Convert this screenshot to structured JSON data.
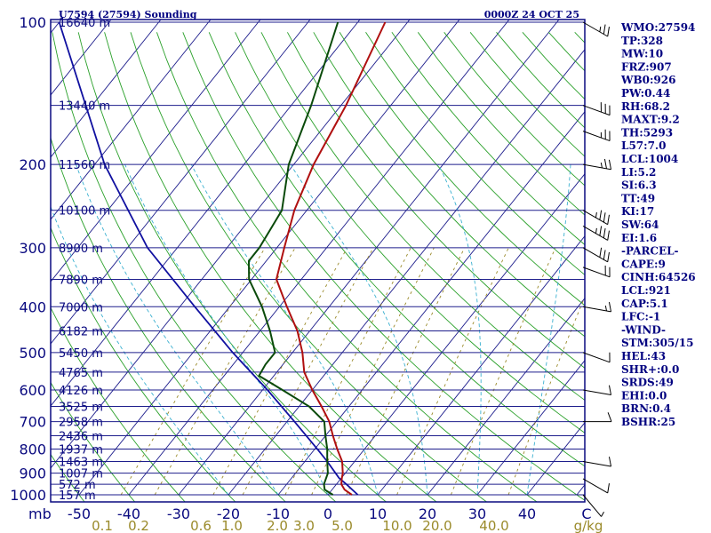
{
  "chart_data": {
    "type": "skew-t",
    "title_left": "U7594 (27594) Sounding",
    "title_right": "0000Z 24 OCT 25",
    "pressure_axis_unit": "mb",
    "pressure_levels": [
      100,
      200,
      300,
      400,
      500,
      600,
      700,
      800,
      900,
      1000
    ],
    "height_levels": [
      {
        "p": 100,
        "label": "16640 m"
      },
      {
        "p": 150,
        "label": "13440 m"
      },
      {
        "p": 200,
        "label": "11560 m"
      },
      {
        "p": 250,
        "label": "10100 m"
      },
      {
        "p": 300,
        "label": "8900 m"
      },
      {
        "p": 350,
        "label": "7890 m"
      },
      {
        "p": 400,
        "label": "7000 m"
      },
      {
        "p": 450,
        "label": "6182 m"
      },
      {
        "p": 500,
        "label": "5450 m"
      },
      {
        "p": 550,
        "label": "4765 m"
      },
      {
        "p": 600,
        "label": "4126 m"
      },
      {
        "p": 650,
        "label": "3525 m"
      },
      {
        "p": 700,
        "label": "2958 m"
      },
      {
        "p": 750,
        "label": "2436 m"
      },
      {
        "p": 800,
        "label": "1937 m"
      },
      {
        "p": 850,
        "label": "1463 m"
      },
      {
        "p": 900,
        "label": "1007 m"
      },
      {
        "p": 950,
        "label": "572 m"
      },
      {
        "p": 1000,
        "label": "157 m"
      }
    ],
    "temperature_ticks": [
      -50,
      -40,
      -30,
      -20,
      -10,
      0,
      10,
      20,
      30,
      40
    ],
    "temperature_unit": "C",
    "mixing_ratio_ticks": [
      {
        "label": "0.1",
        "value": 0.1
      },
      {
        "label": "0.2",
        "value": 0.2
      },
      {
        "label": "0.6",
        "value": 0.6
      },
      {
        "label": "1.0",
        "value": 1.0
      },
      {
        "label": "2.0",
        "value": 2.0
      },
      {
        "label": "3.0",
        "value": 3.0
      },
      {
        "label": "5.0",
        "value": 5.0
      },
      {
        "label": "10.0",
        "value": 10.0
      },
      {
        "label": "20.0",
        "value": 20.0
      },
      {
        "label": "40.0",
        "value": 40.0
      }
    ],
    "mixing_ratio_unit": "g/kg",
    "temperature_profile": [
      {
        "p": 1000,
        "t": 4.8
      },
      {
        "p": 975,
        "t": 2.5
      },
      {
        "p": 950,
        "t": 1.0
      },
      {
        "p": 925,
        "t": 0.2
      },
      {
        "p": 900,
        "t": -0.5
      },
      {
        "p": 850,
        "t": -2.5
      },
      {
        "p": 800,
        "t": -5.5
      },
      {
        "p": 750,
        "t": -8.5
      },
      {
        "p": 700,
        "t": -11.5
      },
      {
        "p": 650,
        "t": -15.5
      },
      {
        "p": 600,
        "t": -20.0
      },
      {
        "p": 550,
        "t": -24.5
      },
      {
        "p": 500,
        "t": -28.0
      },
      {
        "p": 450,
        "t": -32.5
      },
      {
        "p": 400,
        "t": -38.5
      },
      {
        "p": 350,
        "t": -45.0
      },
      {
        "p": 300,
        "t": -48.5
      },
      {
        "p": 250,
        "t": -52.5
      },
      {
        "p": 200,
        "t": -56.0
      },
      {
        "p": 150,
        "t": -59.0
      },
      {
        "p": 100,
        "t": -64.5
      }
    ],
    "dewpoint_profile": [
      {
        "p": 1000,
        "t": 1.0
      },
      {
        "p": 975,
        "t": -1.5
      },
      {
        "p": 950,
        "t": -2.5
      },
      {
        "p": 900,
        "t": -3.5
      },
      {
        "p": 850,
        "t": -5.5
      },
      {
        "p": 800,
        "t": -7.5
      },
      {
        "p": 750,
        "t": -10.0
      },
      {
        "p": 700,
        "t": -12.5
      },
      {
        "p": 650,
        "t": -18.0
      },
      {
        "p": 600,
        "t": -26.0
      },
      {
        "p": 560,
        "t": -33.0
      },
      {
        "p": 530,
        "t": -33.5
      },
      {
        "p": 500,
        "t": -33.5
      },
      {
        "p": 450,
        "t": -38.0
      },
      {
        "p": 400,
        "t": -43.5
      },
      {
        "p": 350,
        "t": -50.5
      },
      {
        "p": 320,
        "t": -53.5
      },
      {
        "p": 300,
        "t": -53.5
      },
      {
        "p": 250,
        "t": -55.0
      },
      {
        "p": 200,
        "t": -61.0
      },
      {
        "p": 150,
        "t": -66.0
      },
      {
        "p": 100,
        "t": -74.0
      }
    ],
    "parcel_profile": [
      {
        "p": 1000,
        "t": 6.0
      },
      {
        "p": 950,
        "t": 2.0
      },
      {
        "p": 921,
        "t": -0.5
      },
      {
        "p": 850,
        "t": -5.5
      },
      {
        "p": 800,
        "t": -9.5
      },
      {
        "p": 700,
        "t": -18.5
      },
      {
        "p": 600,
        "t": -29.0
      },
      {
        "p": 500,
        "t": -42.0
      },
      {
        "p": 400,
        "t": -57.0
      },
      {
        "p": 300,
        "t": -76.0
      },
      {
        "p": 200,
        "t": -98.0
      },
      {
        "p": 100,
        "t": -130.0
      }
    ],
    "wind_barbs": [
      {
        "p": 100,
        "dir": 300,
        "spd": 25
      },
      {
        "p": 150,
        "dir": 290,
        "spd": 30
      },
      {
        "p": 170,
        "dir": 290,
        "spd": 25
      },
      {
        "p": 200,
        "dir": 280,
        "spd": 25
      },
      {
        "p": 250,
        "dir": 300,
        "spd": 35
      },
      {
        "p": 270,
        "dir": 300,
        "spd": 35
      },
      {
        "p": 300,
        "dir": 300,
        "spd": 30
      },
      {
        "p": 330,
        "dir": 290,
        "spd": 20
      },
      {
        "p": 400,
        "dir": 280,
        "spd": 15
      },
      {
        "p": 500,
        "dir": 290,
        "spd": 10
      },
      {
        "p": 600,
        "dir": 280,
        "spd": 10
      },
      {
        "p": 700,
        "dir": 270,
        "spd": 10
      },
      {
        "p": 850,
        "dir": 280,
        "spd": 10
      },
      {
        "p": 925,
        "dir": 300,
        "spd": 10
      },
      {
        "p": 1000,
        "dir": 320,
        "spd": 5
      }
    ]
  },
  "stats": [
    "WMO:27594",
    "TP:328",
    "MW:10",
    "FRZ:907",
    "WB0:926",
    "PW:0.44",
    "RH:68.2",
    "MAXT:9.2",
    "TH:5293",
    "L57:7.0",
    "LCL:1004",
    "LI:5.2",
    "SI:6.3",
    "TT:49",
    "KI:17",
    "SW:64",
    "EI:1.6",
    "-PARCEL-",
    "CAPE:9",
    "CINH:64526",
    "LCL:921",
    "CAP:5.1",
    "LFC:-1",
    "-WIND-",
    "STM:305/15",
    "HEL:43",
    "SHR+:0.0",
    "SRDS:49",
    "EHI:0.0",
    "BRN:0.4",
    "BSHR:25"
  ],
  "colors": {
    "frame": "#0a0a80",
    "isobar": "#1e1e8c",
    "isotherm": "#1e1e8c",
    "dry_adiabat": "#2aa02a",
    "moist_adiabat": "#3ab0d0",
    "mixing_ratio": "#9a8a2a",
    "temperature": "#b01010",
    "dewpoint": "#0a4a0a",
    "parcel": "#1010a0",
    "barb": "#000000"
  }
}
